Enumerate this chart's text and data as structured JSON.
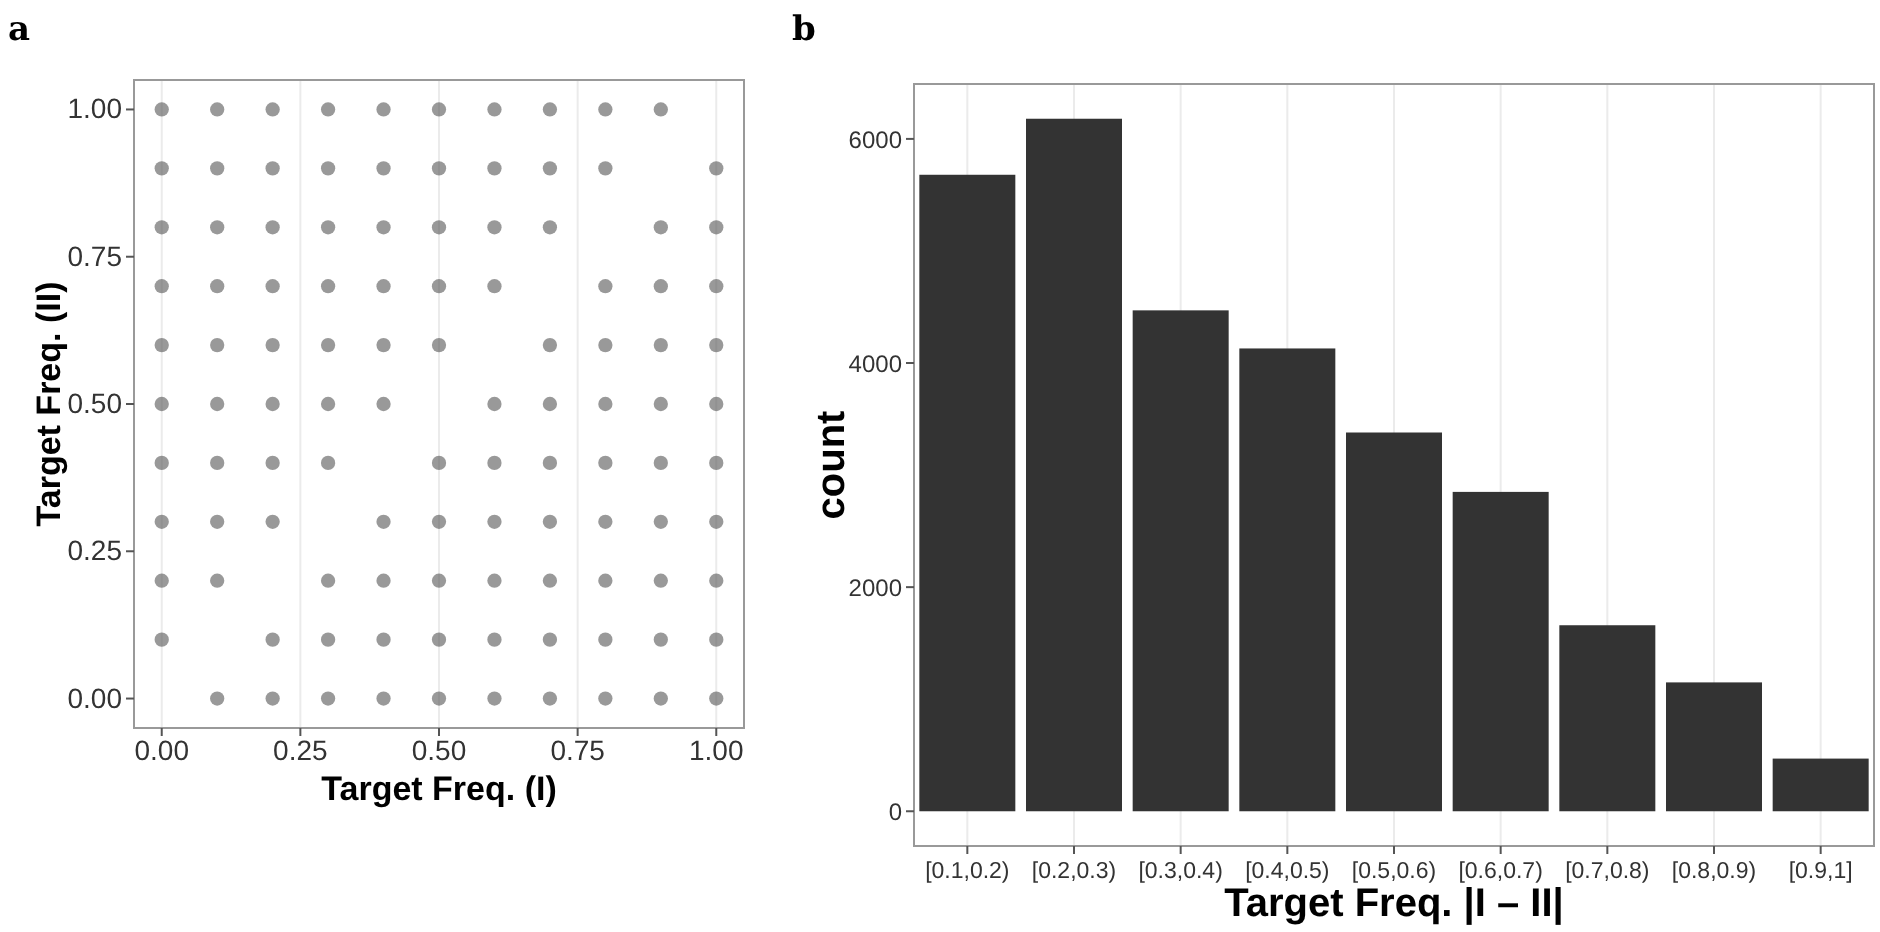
{
  "chart_data": [
    {
      "type": "scatter",
      "title": "a",
      "xlabel": "Target Freq. (I)",
      "ylabel": "Target Freq. (II)",
      "xlim": [
        -0.05,
        1.05
      ],
      "ylim": [
        -0.05,
        1.05
      ],
      "xticks": [
        {
          "value": 0,
          "label": "0.00"
        },
        {
          "value": 0.25,
          "label": "0.25"
        },
        {
          "value": 0.5,
          "label": "0.50"
        },
        {
          "value": 0.75,
          "label": "0.75"
        },
        {
          "value": 1,
          "label": "1.00"
        }
      ],
      "yticks": [
        {
          "value": 0,
          "label": "0.00"
        },
        {
          "value": 0.25,
          "label": "0.25"
        },
        {
          "value": 0.5,
          "label": "0.50"
        },
        {
          "value": 0.75,
          "label": "0.75"
        },
        {
          "value": 1,
          "label": "1.00"
        }
      ],
      "grid": "x",
      "marker": "circle",
      "series": [
        {
          "color": "#555555",
          "x": [
            0,
            0,
            0,
            0,
            0,
            0,
            0,
            0,
            0,
            0,
            0.1,
            0.1,
            0.1,
            0.1,
            0.1,
            0.1,
            0.1,
            0.1,
            0.1,
            0.1,
            0.2,
            0.2,
            0.2,
            0.2,
            0.2,
            0.2,
            0.2,
            0.2,
            0.2,
            0.2,
            0.3,
            0.3,
            0.3,
            0.3,
            0.3,
            0.3,
            0.3,
            0.3,
            0.3,
            0.3,
            0.4,
            0.4,
            0.4,
            0.4,
            0.4,
            0.4,
            0.4,
            0.4,
            0.4,
            0.4,
            0.5,
            0.5,
            0.5,
            0.5,
            0.5,
            0.5,
            0.5,
            0.5,
            0.5,
            0.5,
            0.6,
            0.6,
            0.6,
            0.6,
            0.6,
            0.6,
            0.6,
            0.6,
            0.6,
            0.6,
            0.7,
            0.7,
            0.7,
            0.7,
            0.7,
            0.7,
            0.7,
            0.7,
            0.7,
            0.7,
            0.8,
            0.8,
            0.8,
            0.8,
            0.8,
            0.8,
            0.8,
            0.8,
            0.8,
            0.8,
            0.9,
            0.9,
            0.9,
            0.9,
            0.9,
            0.9,
            0.9,
            0.9,
            0.9,
            0.9,
            1,
            1,
            1,
            1,
            1,
            1,
            1,
            1,
            1,
            1
          ],
          "values": [
            0.1,
            0.2,
            0.3,
            0.4,
            0.5,
            0.6,
            0.7,
            0.8,
            0.9,
            1,
            0,
            0.2,
            0.3,
            0.4,
            0.5,
            0.6,
            0.7,
            0.8,
            0.9,
            1,
            0,
            0.1,
            0.3,
            0.4,
            0.5,
            0.6,
            0.7,
            0.8,
            0.9,
            1,
            0,
            0.1,
            0.2,
            0.4,
            0.5,
            0.6,
            0.7,
            0.8,
            0.9,
            1,
            0,
            0.1,
            0.2,
            0.3,
            0.5,
            0.6,
            0.7,
            0.8,
            0.9,
            1,
            0,
            0.1,
            0.2,
            0.3,
            0.4,
            0.6,
            0.7,
            0.8,
            0.9,
            1,
            0,
            0.1,
            0.2,
            0.3,
            0.4,
            0.5,
            0.7,
            0.8,
            0.9,
            1,
            0,
            0.1,
            0.2,
            0.3,
            0.4,
            0.5,
            0.6,
            0.8,
            0.9,
            1,
            0,
            0.1,
            0.2,
            0.3,
            0.4,
            0.5,
            0.6,
            0.7,
            0.9,
            1,
            0,
            0.1,
            0.2,
            0.3,
            0.4,
            0.5,
            0.6,
            0.7,
            0.8,
            1,
            0,
            0.1,
            0.2,
            0.3,
            0.4,
            0.5,
            0.6,
            0.7,
            0.8,
            0.9
          ]
        }
      ]
    },
    {
      "type": "bar",
      "title": "b",
      "xlabel": "Target Freq. |I – II|",
      "ylabel": "count",
      "categories": [
        "[0.1,0.2)",
        "[0.2,0.3)",
        "[0.3,0.4)",
        "[0.4,0.5)",
        "[0.5,0.6)",
        "[0.6,0.7)",
        "[0.7,0.8)",
        "[0.8,0.9)",
        "[0.9,1]"
      ],
      "values": [
        5680,
        6180,
        4470,
        4130,
        3380,
        2850,
        1660,
        1150,
        470
      ],
      "color": "#333333",
      "ylim": [
        -310,
        6490
      ],
      "yticks": [
        0,
        2000,
        4000,
        6000
      ],
      "grid": "x"
    }
  ]
}
